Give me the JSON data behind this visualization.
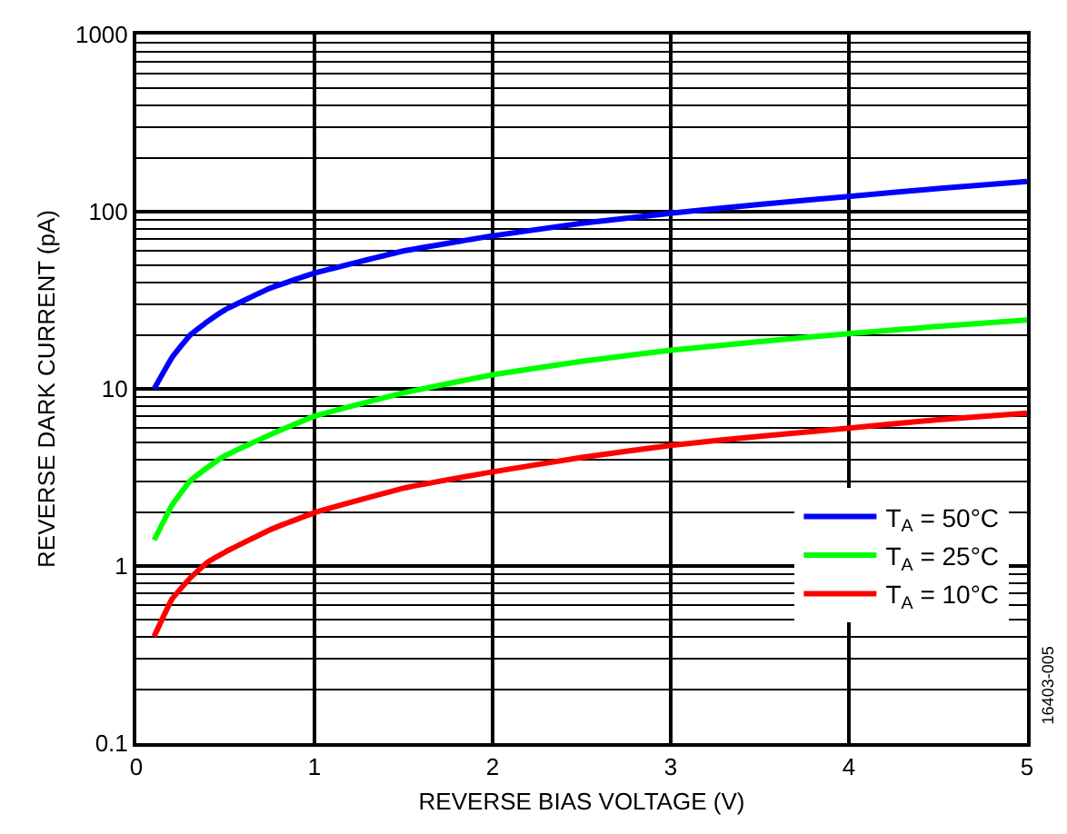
{
  "chart_data": {
    "type": "line",
    "xlabel": "REVERSE BIAS VOLTAGE (V)",
    "ylabel": "REVERSE DARK CURRENT (pA)",
    "x": [
      0.1,
      0.2,
      0.3,
      0.4,
      0.5,
      0.75,
      1,
      1.5,
      2,
      2.5,
      3,
      3.5,
      4,
      4.5,
      5
    ],
    "series": [
      {
        "name": "T$_{A}$ = 50°C",
        "color": "#0000ff",
        "values": [
          10,
          15,
          20,
          24,
          28,
          37,
          45,
          60,
          73,
          86,
          98,
          110,
          122,
          135,
          148
        ]
      },
      {
        "name": "T$_{A}$ = 25°C",
        "color": "#00ff00",
        "values": [
          1.4,
          2.2,
          3,
          3.6,
          4.2,
          5.5,
          7,
          9.5,
          12,
          14.3,
          16.5,
          18.5,
          20.5,
          22.5,
          24.5
        ]
      },
      {
        "name": "T$_{A}$ = 10°C",
        "color": "#ff0000",
        "values": [
          0.4,
          0.65,
          0.85,
          1.05,
          1.2,
          1.6,
          2,
          2.75,
          3.4,
          4.1,
          4.8,
          5.4,
          6,
          6.7,
          7.3
        ]
      }
    ],
    "xlim": [
      0,
      5
    ],
    "xticks": [
      0,
      1,
      2,
      3,
      4,
      5
    ],
    "ylim": [
      0.1,
      1000
    ],
    "yticks": [
      0.1,
      1,
      10,
      100,
      1000
    ],
    "log": true,
    "grid": true,
    "legend": "bottom right",
    "marker": "none",
    "line_style": "solid",
    "annotations": [
      "16403-005"
    ]
  }
}
